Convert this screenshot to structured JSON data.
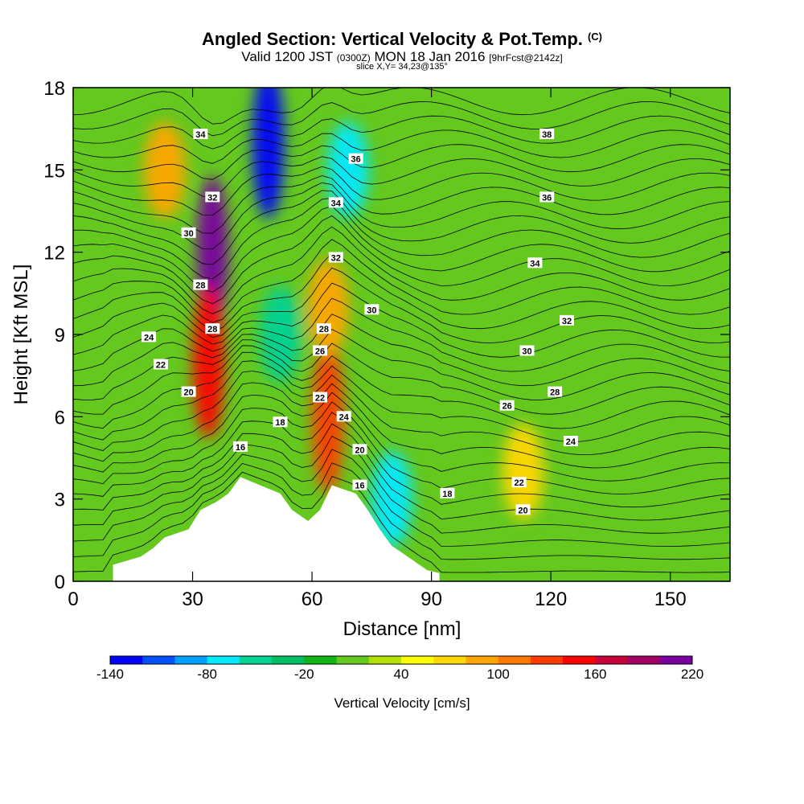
{
  "header": {
    "title": "Angled Section: Vertical Velocity & Pot.Temp.",
    "title_suffix": "(C)",
    "valid_prefix": "Valid 1200 JST",
    "valid_utc": "(0300Z)",
    "valid_date": "MON 18 Jan 2016",
    "forecast": "[9hrFcst@2142z]",
    "slice": "slice X,Y= 34,23@135°"
  },
  "colors": {
    "palette": [
      "#0000ff",
      "#0050ff",
      "#00a0ff",
      "#00eaff",
      "#00d296",
      "#00be64",
      "#10b414",
      "#64c81e",
      "#b4e100",
      "#ffff00",
      "#ffd700",
      "#ffa500",
      "#ff7800",
      "#ff3c00",
      "#ff0000",
      "#c8003c",
      "#a00064",
      "#7800a0"
    ],
    "terrain": "#ffffff",
    "contour": "#000000"
  },
  "chart_data": {
    "type": "heatmap",
    "title": "Angled Section: Vertical Velocity & Pot.Temp.",
    "xlabel": "Distance [nm]",
    "ylabel": "Height [Kft MSL]",
    "xlim": [
      0,
      165
    ],
    "ylim": [
      0,
      18
    ],
    "xticks": [
      0,
      30,
      60,
      90,
      120,
      150
    ],
    "yticks": [
      0,
      3,
      6,
      9,
      12,
      15,
      18
    ],
    "colorbar": {
      "label": "Vertical Velocity [cm/s]",
      "min": -140,
      "max": 220,
      "step": 20,
      "ticks": [
        -140,
        -80,
        -20,
        40,
        100,
        160,
        220
      ]
    },
    "vertical_velocity_features": [
      {
        "feature": "updraft",
        "x": 35,
        "y": 12,
        "value": 200
      },
      {
        "feature": "updraft",
        "x": 34,
        "y": 8,
        "value": 150
      },
      {
        "feature": "downdraft",
        "x": 49,
        "y": 16,
        "value": -140
      },
      {
        "feature": "downdraft",
        "x": 52,
        "y": 9,
        "value": -60
      },
      {
        "feature": "updraft",
        "x": 64,
        "y": 6,
        "value": 120
      },
      {
        "feature": "updraft",
        "x": 64,
        "y": 10,
        "value": 90
      },
      {
        "feature": "downdraft",
        "x": 69,
        "y": 15,
        "value": -80
      },
      {
        "feature": "downdraft",
        "x": 80,
        "y": 3,
        "value": -80
      },
      {
        "feature": "updraft",
        "x": 23,
        "y": 15,
        "value": 80
      },
      {
        "feature": "updraft",
        "x": 113,
        "y": 4,
        "value": 60
      }
    ],
    "potential_temperature_labels": [
      {
        "value": "34",
        "x": 32,
        "y": 16.3
      },
      {
        "value": "32",
        "x": 35,
        "y": 14.0
      },
      {
        "value": "30",
        "x": 29,
        "y": 12.7
      },
      {
        "value": "28",
        "x": 32,
        "y": 10.8
      },
      {
        "value": "28",
        "x": 35,
        "y": 9.2
      },
      {
        "value": "24",
        "x": 19,
        "y": 8.9
      },
      {
        "value": "22",
        "x": 22,
        "y": 7.9
      },
      {
        "value": "20",
        "x": 29,
        "y": 6.9
      },
      {
        "value": "18",
        "x": 52,
        "y": 5.8
      },
      {
        "value": "16",
        "x": 42,
        "y": 4.9
      },
      {
        "value": "36",
        "x": 71,
        "y": 15.4
      },
      {
        "value": "34",
        "x": 66,
        "y": 13.8
      },
      {
        "value": "32",
        "x": 66,
        "y": 11.8
      },
      {
        "value": "30",
        "x": 75,
        "y": 9.9
      },
      {
        "value": "28",
        "x": 63,
        "y": 9.2
      },
      {
        "value": "26",
        "x": 62,
        "y": 8.4
      },
      {
        "value": "22",
        "x": 62,
        "y": 6.7
      },
      {
        "value": "24",
        "x": 68,
        "y": 6.0
      },
      {
        "value": "20",
        "x": 72,
        "y": 4.8
      },
      {
        "value": "16",
        "x": 72,
        "y": 3.5
      },
      {
        "value": "18",
        "x": 94,
        "y": 3.2
      },
      {
        "value": "38",
        "x": 119,
        "y": 16.3
      },
      {
        "value": "36",
        "x": 119,
        "y": 14.0
      },
      {
        "value": "34",
        "x": 116,
        "y": 11.6
      },
      {
        "value": "32",
        "x": 124,
        "y": 9.5
      },
      {
        "value": "30",
        "x": 114,
        "y": 8.4
      },
      {
        "value": "28",
        "x": 121,
        "y": 6.9
      },
      {
        "value": "26",
        "x": 109,
        "y": 6.4
      },
      {
        "value": "24",
        "x": 125,
        "y": 5.1
      },
      {
        "value": "22",
        "x": 112,
        "y": 3.6
      },
      {
        "value": "20",
        "x": 113,
        "y": 2.6
      }
    ],
    "terrain_profile": [
      [
        10,
        0.6
      ],
      [
        17,
        0.9
      ],
      [
        20,
        1.2
      ],
      [
        23,
        1.6
      ],
      [
        29,
        1.9
      ],
      [
        32,
        2.6
      ],
      [
        36,
        2.9
      ],
      [
        39,
        3.2
      ],
      [
        42,
        3.8
      ],
      [
        52,
        3.2
      ],
      [
        55,
        2.6
      ],
      [
        59,
        2.2
      ],
      [
        62,
        2.6
      ],
      [
        65,
        3.5
      ],
      [
        71,
        3.2
      ],
      [
        74,
        2.6
      ],
      [
        77,
        1.9
      ],
      [
        80,
        1.3
      ],
      [
        83,
        1.0
      ],
      [
        86,
        0.7
      ],
      [
        89,
        0.4
      ],
      [
        92,
        0.3
      ]
    ]
  }
}
